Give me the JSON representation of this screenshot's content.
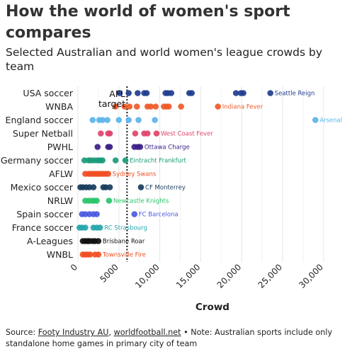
{
  "title": "How the world of women's sport compares",
  "subtitle": "Selected Australian and world women's league crowds by team",
  "source": {
    "prefix": "Source: ",
    "link1": "Footy Industry AU",
    "sep": ", ",
    "link2": "worldfootball.net",
    "note": " • Note: Australian sports include only standalone home games in primary city of team"
  },
  "chart_data": {
    "type": "scatter",
    "xlabel": "Crowd",
    "xlim": [
      0,
      32000
    ],
    "xticks": [
      0,
      5000,
      10000,
      15000,
      20000,
      25000,
      30000
    ],
    "xtick_labels": [
      "0",
      "5000",
      "10,000",
      "15,000",
      "20,000",
      "25,000",
      "30,000"
    ],
    "reference_line": {
      "value": 6000,
      "label_line1": "AFL",
      "label_line2": "target"
    },
    "series": [
      {
        "name": "USA soccer",
        "color": "#1f3d8f",
        "label": "Seattle Reign",
        "label_color": "#1f3d8f",
        "values": [
          5100,
          6200,
          7300,
          8100,
          8400,
          10700,
          11000,
          11400,
          13600,
          13900,
          19300,
          19900,
          20200,
          23500
        ]
      },
      {
        "name": "WNBA",
        "color": "#f05a28",
        "label": "Indiana Fever",
        "label_color": "#f05a28",
        "values": [
          4600,
          5700,
          6300,
          7200,
          8500,
          8900,
          9500,
          10500,
          10800,
          11100,
          12600,
          17100
        ]
      },
      {
        "name": "England soccer",
        "color": "#5ab4ea",
        "label": "Arsenal",
        "label_color": "#5ab4ea",
        "values": [
          1800,
          2600,
          3000,
          3600,
          5000,
          6200,
          7400,
          9400,
          29000
        ]
      },
      {
        "name": "Super Netball",
        "color": "#e0436b",
        "label": "West Coast Fever",
        "label_color": "#e0436b",
        "values": [
          2800,
          3700,
          3900,
          7000,
          8100,
          8500,
          9600
        ]
      },
      {
        "name": "PWHL",
        "color": "#3b1f86",
        "label": "Ottawa Charge",
        "label_color": "#3b1f86",
        "values": [
          2400,
          3700,
          3900,
          6900,
          7300,
          7600
        ]
      },
      {
        "name": "Germany soccer",
        "color": "#1a9a78",
        "label": "Eintracht Frankfurt",
        "label_color": "#1a9a78",
        "values": [
          800,
          1300,
          1600,
          2000,
          2400,
          2700,
          3000,
          4600,
          5800
        ]
      },
      {
        "name": "AFLW",
        "color": "#f04e23",
        "label": "Sydney Swans",
        "label_color": "#f04e23",
        "values": [
          900,
          1300,
          1600,
          1900,
          2200,
          2500,
          2800,
          3100,
          3400,
          3700
        ]
      },
      {
        "name": "Mexico soccer",
        "color": "#163c5c",
        "label": "CF Monterrey",
        "label_color": "#163c5c",
        "values": [
          300,
          600,
          1000,
          1400,
          1900,
          3100,
          3400,
          3900,
          7700
        ]
      },
      {
        "name": "NRLW",
        "color": "#2bc46a",
        "label": "Newcastle Knights",
        "label_color": "#2bc46a",
        "values": [
          900,
          1300,
          1700,
          2000,
          2300,
          3800
        ]
      },
      {
        "name": "Spain soccer",
        "color": "#4a5ae0",
        "label": "FC Barcelona",
        "label_color": "#4a5ae0",
        "values": [
          500,
          900,
          1400,
          1900,
          2300,
          6900
        ]
      },
      {
        "name": "France soccer",
        "color": "#24a6ad",
        "label": "RC Strasbourg",
        "label_color": "#24a6ad",
        "values": [
          200,
          500,
          900,
          1900,
          2300,
          2700
        ]
      },
      {
        "name": "A-Leagues",
        "color": "#111111",
        "label": "Brisbane Roar",
        "label_color": "#111111",
        "values": [
          600,
          900,
          1200,
          1400,
          1800,
          2100,
          2500
        ]
      },
      {
        "name": "WNBL",
        "color": "#f14f22",
        "label": "Townsville Fire",
        "label_color": "#f14f22",
        "values": [
          600,
          900,
          1200,
          1500,
          2100,
          2500
        ]
      }
    ]
  }
}
